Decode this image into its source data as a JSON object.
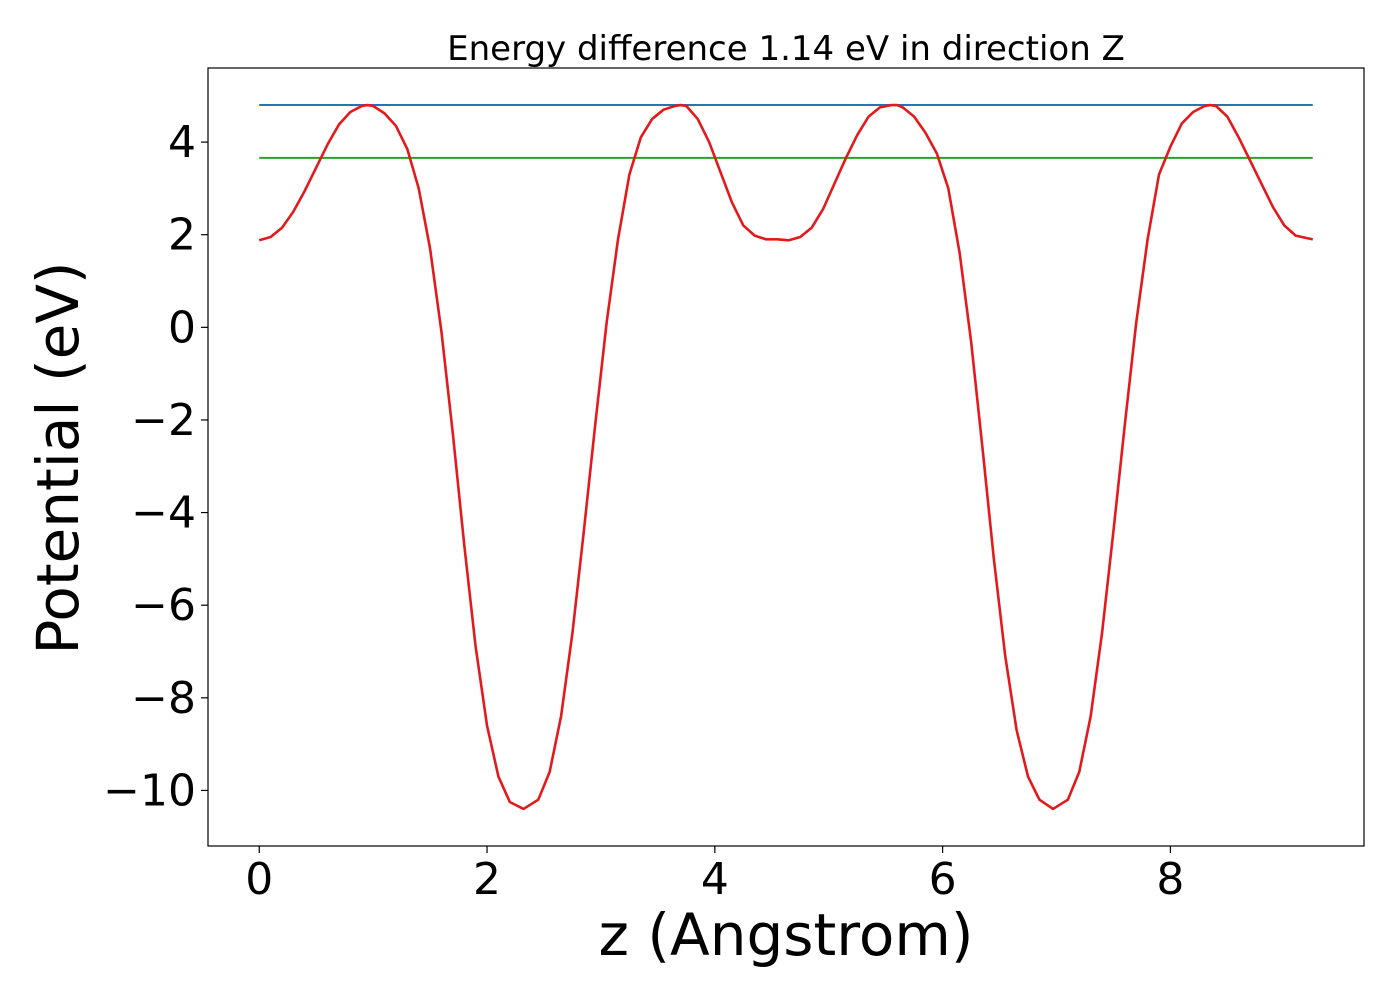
{
  "chart_data": {
    "type": "line",
    "title": "Energy difference 1.14 eV in direction Z",
    "xlabel": "z (Angstrom)",
    "ylabel": "Potential (eV)",
    "xlim": [
      -0.45,
      9.7
    ],
    "ylim": [
      -11.2,
      5.6
    ],
    "xticks": [
      0,
      2,
      4,
      6,
      8
    ],
    "xtick_labels": [
      "0",
      "2",
      "4",
      "6",
      "8"
    ],
    "yticks": [
      4,
      2,
      0,
      -2,
      -4,
      -6,
      -8,
      -10
    ],
    "ytick_labels": [
      "4",
      "2",
      "0",
      "−2",
      "−4",
      "−6",
      "−8",
      "−10"
    ],
    "grid": false,
    "series": [
      {
        "color": "#1f77b4",
        "x": [
          0,
          9.25
        ],
        "y": [
          4.8,
          4.8
        ]
      },
      {
        "color": "#2ca02c",
        "x": [
          0,
          9.25
        ],
        "y": [
          3.66,
          3.66
        ]
      },
      {
        "color": "#e31a1c",
        "x": [
          0,
          0.1,
          0.2,
          0.3,
          0.4,
          0.5,
          0.6,
          0.7,
          0.8,
          0.9,
          0.95,
          1.0,
          1.1,
          1.2,
          1.3,
          1.4,
          1.5,
          1.6,
          1.7,
          1.8,
          1.9,
          2.0,
          2.1,
          2.2,
          2.32,
          2.45,
          2.55,
          2.65,
          2.75,
          2.85,
          2.95,
          3.05,
          3.15,
          3.25,
          3.35,
          3.45,
          3.55,
          3.65,
          3.7,
          3.75,
          3.85,
          3.95,
          4.05,
          4.15,
          4.25,
          4.35,
          4.45,
          4.55,
          4.65,
          4.75,
          4.85,
          4.95,
          5.05,
          5.15,
          5.25,
          5.35,
          5.45,
          5.55,
          5.6,
          5.65,
          5.75,
          5.85,
          5.95,
          6.05,
          6.15,
          6.25,
          6.35,
          6.45,
          6.55,
          6.65,
          6.75,
          6.85,
          6.97,
          7.1,
          7.2,
          7.3,
          7.4,
          7.5,
          7.6,
          7.7,
          7.8,
          7.9,
          8.0,
          8.1,
          8.2,
          8.3,
          8.35,
          8.4,
          8.5,
          8.6,
          8.7,
          8.8,
          8.9,
          9.0,
          9.1,
          9.25
        ],
        "y": [
          1.88,
          1.95,
          2.15,
          2.5,
          2.95,
          3.45,
          3.95,
          4.38,
          4.65,
          4.78,
          4.8,
          4.78,
          4.62,
          4.35,
          3.85,
          3.0,
          1.7,
          -0.1,
          -2.3,
          -4.7,
          -6.9,
          -8.6,
          -9.7,
          -10.25,
          -10.4,
          -10.2,
          -9.6,
          -8.4,
          -6.6,
          -4.4,
          -2.1,
          0.1,
          1.9,
          3.3,
          4.1,
          4.5,
          4.7,
          4.78,
          4.8,
          4.78,
          4.5,
          4.0,
          3.35,
          2.7,
          2.2,
          1.98,
          1.9,
          1.9,
          1.88,
          1.95,
          2.15,
          2.55,
          3.1,
          3.65,
          4.15,
          4.55,
          4.75,
          4.8,
          4.8,
          4.75,
          4.55,
          4.2,
          3.75,
          3.0,
          1.6,
          -0.3,
          -2.6,
          -5.0,
          -7.1,
          -8.7,
          -9.7,
          -10.2,
          -10.4,
          -10.2,
          -9.6,
          -8.4,
          -6.6,
          -4.4,
          -2.1,
          0.1,
          1.9,
          3.3,
          3.9,
          4.4,
          4.65,
          4.78,
          4.8,
          4.78,
          4.55,
          4.1,
          3.6,
          3.1,
          2.6,
          2.2,
          1.98,
          1.9
        ]
      }
    ]
  }
}
